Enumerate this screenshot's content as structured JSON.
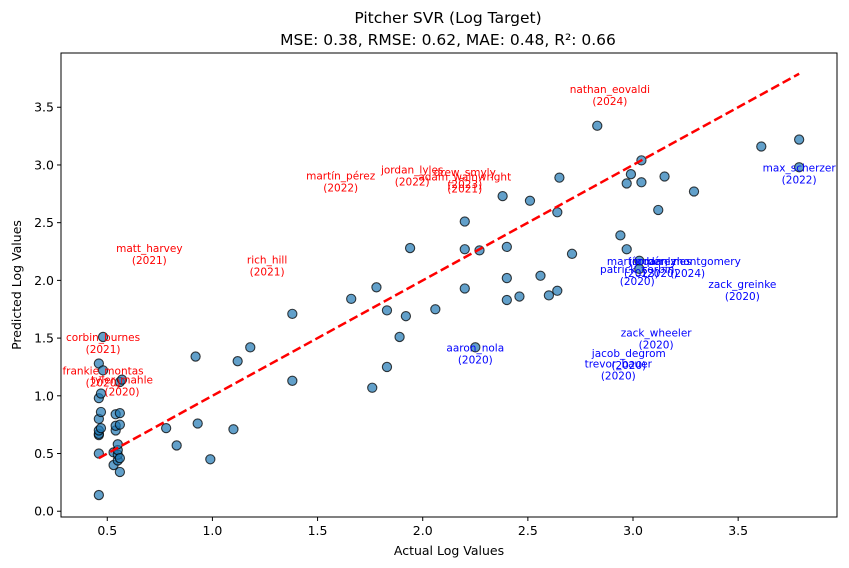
{
  "chart_data": {
    "type": "scatter",
    "title": "Pitcher SVR (Log Target)",
    "subtitle": "MSE: 0.38, RMSE: 0.62, MAE: 0.48, R²: 0.66",
    "xlabel": "Actual Log Values",
    "ylabel": "Predicted Log Values",
    "xlim": [
      0.28,
      3.97
    ],
    "ylim": [
      -0.05,
      3.97
    ],
    "xticks": [
      0.5,
      1.0,
      1.5,
      2.0,
      2.5,
      3.0,
      3.5
    ],
    "xtick_labels": [
      "0.5",
      "1.0",
      "1.5",
      "2.0",
      "2.5",
      "3.0",
      "3.5"
    ],
    "yticks": [
      0.0,
      0.5,
      1.0,
      1.5,
      2.0,
      2.5,
      3.0,
      3.5
    ],
    "ytick_labels": [
      "0.0",
      "0.5",
      "1.0",
      "1.5",
      "2.0",
      "2.5",
      "3.0",
      "3.5"
    ],
    "grid": false,
    "colors": {
      "point_fill": "#1f77b4",
      "point_edge": "#000000",
      "ideal_line": "#ff0000",
      "over_label": "#ff0000",
      "under_label": "#0000ff"
    },
    "ideal_line": {
      "from": [
        0.46,
        0.46
      ],
      "to": [
        3.79,
        3.79
      ],
      "style": "dashed"
    },
    "points": [
      [
        0.46,
        0.14
      ],
      [
        0.46,
        0.5
      ],
      [
        0.46,
        0.66
      ],
      [
        0.46,
        0.67
      ],
      [
        0.46,
        0.7
      ],
      [
        0.46,
        0.8
      ],
      [
        0.46,
        0.98
      ],
      [
        0.47,
        0.72
      ],
      [
        0.47,
        0.86
      ],
      [
        0.47,
        1.02
      ],
      [
        0.46,
        1.28
      ],
      [
        0.48,
        1.51
      ],
      [
        0.48,
        1.22
      ],
      [
        0.53,
        0.4
      ],
      [
        0.53,
        0.51
      ],
      [
        0.54,
        0.7
      ],
      [
        0.54,
        0.74
      ],
      [
        0.54,
        0.84
      ],
      [
        0.55,
        0.44
      ],
      [
        0.55,
        0.49
      ],
      [
        0.55,
        0.53
      ],
      [
        0.55,
        0.58
      ],
      [
        0.56,
        0.34
      ],
      [
        0.56,
        0.46
      ],
      [
        0.56,
        0.75
      ],
      [
        0.56,
        0.85
      ],
      [
        0.56,
        1.12
      ],
      [
        0.57,
        1.14
      ],
      [
        0.78,
        0.72
      ],
      [
        0.83,
        0.57
      ],
      [
        0.92,
        1.34
      ],
      [
        0.93,
        0.76
      ],
      [
        0.99,
        0.45
      ],
      [
        1.1,
        0.71
      ],
      [
        1.12,
        1.3
      ],
      [
        1.18,
        1.42
      ],
      [
        1.38,
        1.13
      ],
      [
        1.38,
        1.71
      ],
      [
        1.66,
        1.84
      ],
      [
        1.76,
        1.07
      ],
      [
        1.78,
        1.94
      ],
      [
        1.83,
        1.25
      ],
      [
        1.83,
        1.74
      ],
      [
        1.89,
        1.51
      ],
      [
        1.92,
        1.69
      ],
      [
        1.94,
        2.28
      ],
      [
        2.06,
        1.75
      ],
      [
        2.2,
        1.93
      ],
      [
        2.2,
        2.27
      ],
      [
        2.2,
        2.51
      ],
      [
        2.25,
        1.42
      ],
      [
        2.27,
        2.26
      ],
      [
        2.38,
        2.73
      ],
      [
        2.4,
        1.83
      ],
      [
        2.4,
        2.02
      ],
      [
        2.4,
        2.29
      ],
      [
        2.46,
        1.86
      ],
      [
        2.51,
        2.69
      ],
      [
        2.56,
        2.04
      ],
      [
        2.6,
        1.87
      ],
      [
        2.64,
        1.91
      ],
      [
        2.64,
        2.59
      ],
      [
        2.65,
        2.89
      ],
      [
        2.71,
        2.23
      ],
      [
        2.83,
        3.34
      ],
      [
        2.94,
        2.39
      ],
      [
        2.97,
        2.27
      ],
      [
        2.97,
        2.84
      ],
      [
        2.99,
        2.92
      ],
      [
        3.03,
        2.17
      ],
      [
        3.03,
        2.1
      ],
      [
        3.04,
        2.85
      ],
      [
        3.04,
        3.04
      ],
      [
        3.12,
        2.61
      ],
      [
        3.15,
        2.9
      ],
      [
        3.29,
        2.77
      ],
      [
        3.61,
        3.16
      ],
      [
        3.79,
        3.22
      ],
      [
        3.79,
        2.98
      ]
    ],
    "annotations": [
      {
        "name": "nathan_eovaldi",
        "year": "(2024)",
        "x": 2.89,
        "y": 3.66,
        "side": "over"
      },
      {
        "name": "martín_pérez",
        "year": "(2022)",
        "x": 1.61,
        "y": 2.91,
        "side": "over"
      },
      {
        "name": "jordan_lyles",
        "year": "(2022)",
        "x": 1.95,
        "y": 2.96,
        "side": "over"
      },
      {
        "name": "drew_smyly",
        "year": "(2023)",
        "x": 2.2,
        "y": 2.94,
        "side": "over"
      },
      {
        "name": "adam_wainwright",
        "year": "(2021)",
        "x": 2.2,
        "y": 2.9,
        "side": "over"
      },
      {
        "name": "matt_harvey",
        "year": "(2021)",
        "x": 0.7,
        "y": 2.28,
        "side": "over"
      },
      {
        "name": "rich_hill",
        "year": "(2021)",
        "x": 1.26,
        "y": 2.18,
        "side": "over"
      },
      {
        "name": "corbin_burnes",
        "year": "(2021)",
        "x": 0.48,
        "y": 1.51,
        "side": "over"
      },
      {
        "name": "frankie_montas",
        "year": "(2020)",
        "x": 0.48,
        "y": 1.22,
        "side": "over"
      },
      {
        "name": "tyler_mahle",
        "year": "(2020)",
        "x": 0.57,
        "y": 1.14,
        "side": "over"
      },
      {
        "name": "max_scherzer",
        "year": "(2022)",
        "x": 3.79,
        "y": 2.98,
        "side": "under"
      },
      {
        "name": "martín_pérez",
        "year": "(2023)",
        "x": 3.04,
        "y": 2.17,
        "side": "under"
      },
      {
        "name": "patrick_corbin",
        "year": "(2020)",
        "x": 3.02,
        "y": 2.1,
        "side": "under"
      },
      {
        "name": "jordan_lyles",
        "year": "(2020)",
        "x": 3.13,
        "y": 2.17,
        "side": "under"
      },
      {
        "name": "jordan_montgomery",
        "year": "(2024)",
        "x": 3.26,
        "y": 2.17,
        "side": "under"
      },
      {
        "name": "zack_greinke",
        "year": "(2020)",
        "x": 3.52,
        "y": 1.97,
        "side": "under"
      },
      {
        "name": "zack_wheeler",
        "year": "(2020)",
        "x": 3.11,
        "y": 1.55,
        "side": "under"
      },
      {
        "name": "jacob_degrom",
        "year": "(2020)",
        "x": 2.98,
        "y": 1.37,
        "side": "under"
      },
      {
        "name": "trevor_bauer",
        "year": "(2020)",
        "x": 2.93,
        "y": 1.28,
        "side": "under"
      },
      {
        "name": "aaron_nola",
        "year": "(2020)",
        "x": 2.25,
        "y": 1.42,
        "side": "under"
      }
    ]
  }
}
